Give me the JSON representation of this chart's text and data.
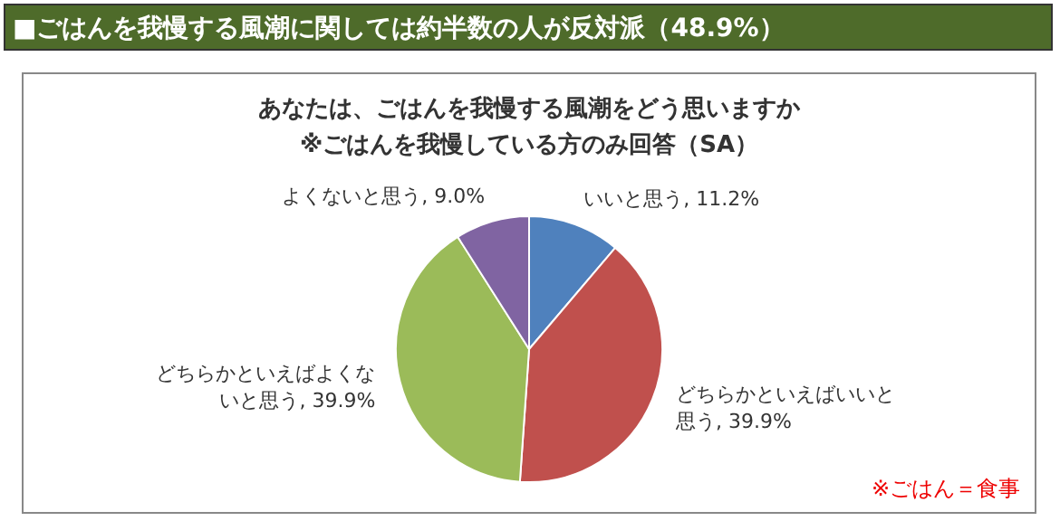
{
  "chart_data": {
    "type": "pie",
    "title": "■ごはんを我慢する風潮に関しては約半数の人が反対派（48.9%）",
    "subtitle": "あなたは、ごはんを我慢する風潮をどう思いますか\n※ごはんを我慢している方のみ回答（SA）",
    "categories": [
      "いいと思う",
      "どちらかといえばいいと思う",
      "どちらかといえばよくないと思う",
      "よくないと思う"
    ],
    "values": [
      11.2,
      39.9,
      39.9,
      9.0
    ],
    "colors": [
      "#4f81bd",
      "#c0504d",
      "#9bbb59",
      "#8064a2"
    ],
    "value_labels": [
      "11.2%",
      "39.9%",
      "39.9%",
      "9.0%"
    ],
    "annotations": [
      "※ごはん＝食事"
    ],
    "legend": false
  }
}
